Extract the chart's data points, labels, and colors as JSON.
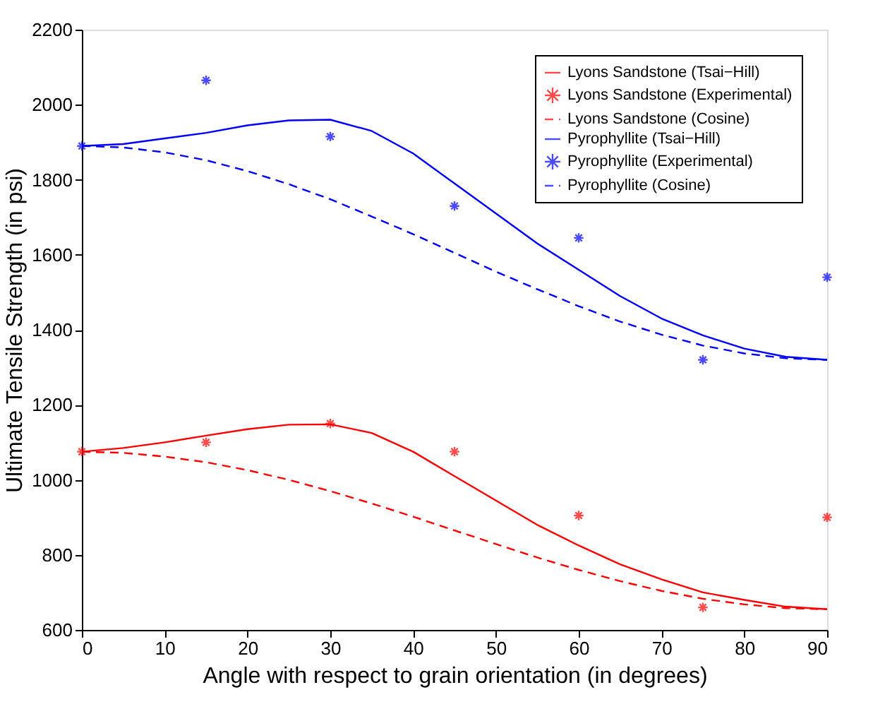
{
  "chart_data": {
    "type": "line",
    "xlabel": "Angle with respect to grain orientation (in degrees)",
    "ylabel": "Ultimate Tensile Strength (in psi)",
    "xlim": [
      0,
      90
    ],
    "xticks": [
      0,
      10,
      20,
      30,
      40,
      50,
      60,
      70,
      80,
      90
    ],
    "ylim": [
      600,
      2200
    ],
    "yticks": [
      600,
      800,
      1000,
      1200,
      1400,
      1600,
      1800,
      2000,
      2200
    ],
    "grid": false,
    "legend": "top right",
    "series": [
      {
        "name": "Lyons Sandstone (Tsai−Hill)",
        "line_style": "solid",
        "color": "#ff0000",
        "x": [
          0,
          5,
          10,
          15,
          20,
          25,
          30,
          35,
          40,
          45,
          50,
          55,
          60,
          65,
          70,
          75,
          80,
          85,
          90
        ],
        "values": [
          1075,
          1085,
          1100,
          1118,
          1135,
          1147,
          1148,
          1125,
          1075,
          1010,
          945,
          880,
          825,
          775,
          735,
          700,
          680,
          662,
          655
        ]
      },
      {
        "name": "Lyons Sandstone (Experimental)",
        "type": "scatter",
        "marker": "cross",
        "color": "#ff0000",
        "x": [
          0,
          15,
          30,
          45,
          60,
          75,
          90
        ],
        "values": [
          1075,
          1100,
          1150,
          1075,
          905,
          660,
          900
        ]
      },
      {
        "name": "Lyons Sandstone (Cosine)",
        "line_style": "dashed",
        "color": "#ff0000",
        "x": [
          0,
          5,
          10,
          15,
          20,
          25,
          30,
          35,
          40,
          45,
          50,
          55,
          60,
          65,
          70,
          75,
          80,
          85,
          90
        ],
        "values": [
          1075,
          1072,
          1062,
          1047,
          1026,
          1000,
          970,
          937,
          902,
          865,
          829,
          793,
          760,
          730,
          704,
          683,
          668,
          658,
          655
        ]
      },
      {
        "name": "Pyrophyllite (Tsai−Hill)",
        "line_style": "solid",
        "color": "#0000ff",
        "x": [
          0,
          5,
          10,
          15,
          20,
          25,
          30,
          35,
          40,
          45,
          50,
          55,
          60,
          65,
          70,
          75,
          80,
          85,
          90
        ],
        "values": [
          1890,
          1895,
          1910,
          1925,
          1945,
          1958,
          1960,
          1930,
          1870,
          1790,
          1710,
          1630,
          1560,
          1490,
          1430,
          1385,
          1350,
          1328,
          1320
        ]
      },
      {
        "name": "Pyrophyllite (Experimental)",
        "type": "scatter",
        "marker": "cross",
        "color": "#0000ff",
        "x": [
          0,
          15,
          30,
          45,
          60,
          75,
          90
        ],
        "values": [
          1890,
          2065,
          1915,
          1730,
          1645,
          1320,
          1540
        ]
      },
      {
        "name": "Pyrophyllite (Cosine)",
        "line_style": "dashed",
        "color": "#0000ff",
        "x": [
          0,
          5,
          10,
          15,
          20,
          25,
          30,
          35,
          40,
          45,
          50,
          55,
          60,
          65,
          70,
          75,
          80,
          85,
          90
        ],
        "values": [
          1890,
          1886,
          1873,
          1852,
          1823,
          1788,
          1748,
          1702,
          1655,
          1605,
          1555,
          1508,
          1463,
          1422,
          1387,
          1358,
          1337,
          1324,
          1320
        ]
      }
    ]
  }
}
